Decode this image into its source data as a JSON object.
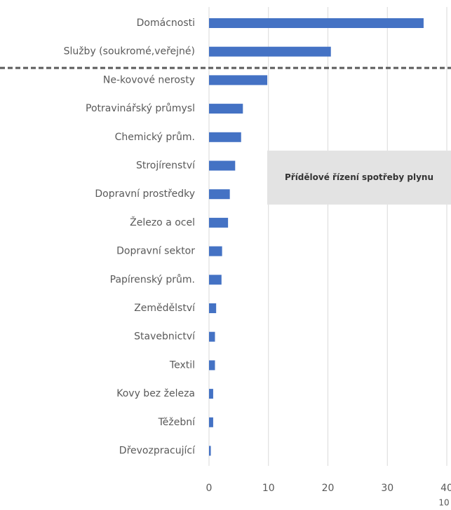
{
  "chart_data": {
    "type": "hbar",
    "categories": [
      "Domácnosti",
      "Služby (soukromé,veřejné)",
      "Ne-kovové nerosty",
      "Potravinářský průmysl",
      "Chemický prům.",
      "Strojírenství",
      "Dopravní prostředky",
      "Železo a ocel",
      "Dopravní sektor",
      "Papírenský prům.",
      "Zemědělství",
      "Stavebnictví",
      "Textil",
      "Kovy bez železa",
      "Těžební",
      "Dřevozpracující"
    ],
    "values": [
      36.1,
      20.5,
      9.8,
      5.7,
      5.4,
      4.4,
      3.5,
      3.2,
      2.2,
      2.1,
      1.2,
      1.0,
      1.0,
      0.7,
      0.7,
      0.3
    ],
    "color": "#4472c4",
    "xlim": [
      0,
      40
    ],
    "xticks": [
      0,
      10,
      20,
      30,
      40
    ],
    "grid": true,
    "xlabel": "10",
    "annotation": "Přídělové řízení spotřeby plynu"
  }
}
